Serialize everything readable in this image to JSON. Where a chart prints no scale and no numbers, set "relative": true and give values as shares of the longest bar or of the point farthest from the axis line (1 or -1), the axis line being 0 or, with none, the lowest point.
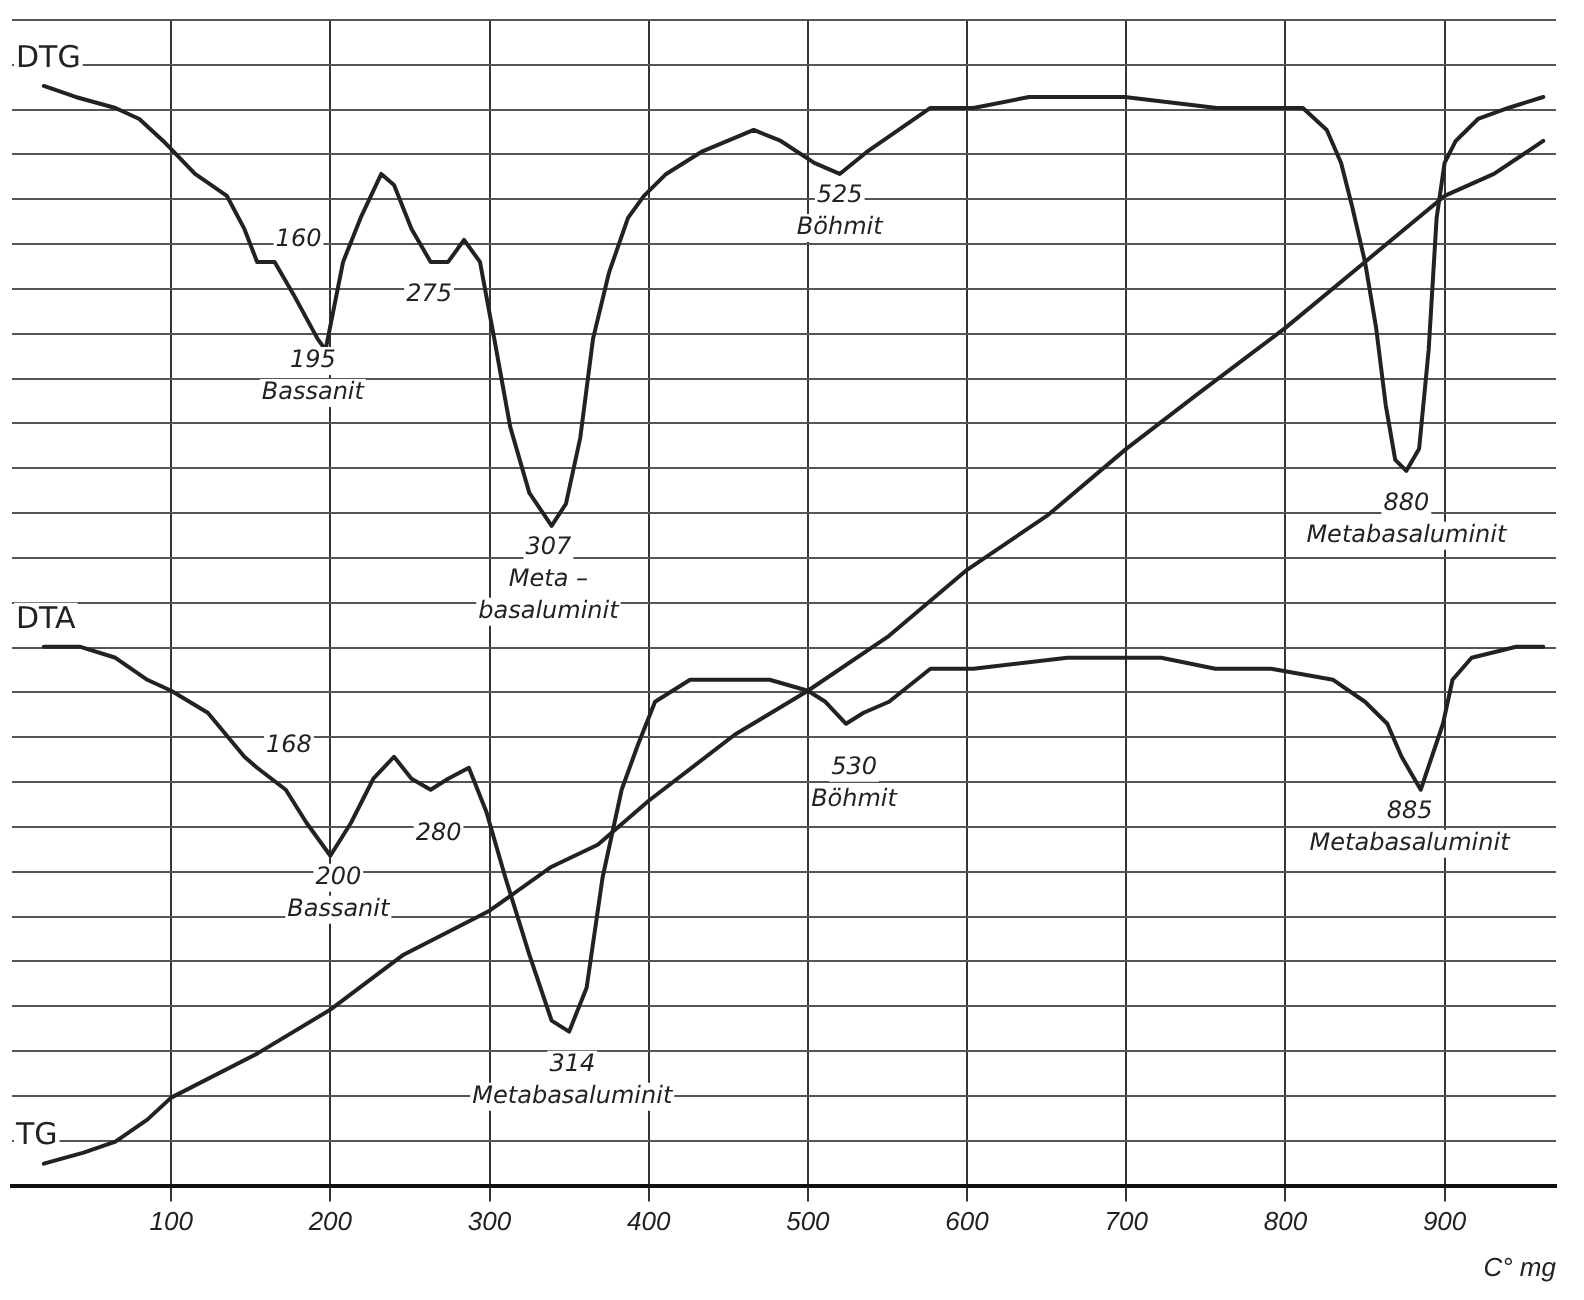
{
  "chart_data": {
    "type": "line",
    "relative": true,
    "xlabel": "C° mg",
    "xlim": [
      0,
      970
    ],
    "xticks": [
      100,
      200,
      300,
      400,
      500,
      600,
      700,
      800,
      900
    ],
    "tick_labels": "x",
    "grid": true,
    "legend": false,
    "marker": "none",
    "line_style": "solid",
    "series": [
      {
        "name": "DTG",
        "color": "#222222",
        "x": [
          20,
          40,
          65,
          80,
          95,
          115,
          135,
          146,
          154,
          165,
          177,
          192,
          197,
          208,
          219,
          232,
          240,
          251,
          263,
          274,
          284,
          294,
          303,
          313,
          325,
          339,
          348,
          357,
          365,
          375,
          387,
          397,
          411,
          433,
          466,
          483,
          504,
          520,
          537,
          557,
          577,
          604,
          639,
          699,
          757,
          791,
          811,
          826,
          835,
          842,
          850,
          857,
          863,
          869,
          876,
          884,
          890,
          895,
          900,
          907,
          921,
          940,
          962
        ],
        "values": [
          1.0,
          0.99,
          0.98,
          0.97,
          0.95,
          0.92,
          0.9,
          0.87,
          0.84,
          0.84,
          0.81,
          0.77,
          0.76,
          0.84,
          0.88,
          0.92,
          0.91,
          0.87,
          0.84,
          0.84,
          0.86,
          0.84,
          0.77,
          0.69,
          0.63,
          0.6,
          0.62,
          0.68,
          0.77,
          0.83,
          0.88,
          0.9,
          0.92,
          0.94,
          0.96,
          0.95,
          0.93,
          0.92,
          0.94,
          0.96,
          0.98,
          0.98,
          0.99,
          0.99,
          0.98,
          0.98,
          0.98,
          0.96,
          0.93,
          0.89,
          0.84,
          0.78,
          0.71,
          0.66,
          0.65,
          0.67,
          0.76,
          0.88,
          0.93,
          0.95,
          0.97,
          0.98,
          0.99
        ]
      },
      {
        "name": "DTA",
        "color": "#222222",
        "x": [
          20,
          43,
          65,
          85,
          100,
          123,
          146,
          154,
          172,
          185,
          200,
          213,
          227,
          240,
          251,
          263,
          274,
          287,
          298,
          310,
          325,
          339,
          350,
          361,
          371,
          383,
          393,
          404,
          426,
          454,
          476,
          500,
          511,
          524,
          535,
          551,
          577,
          604,
          663,
          722,
          756,
          791,
          830,
          850,
          864,
          873,
          885,
          892,
          899,
          905,
          917,
          945,
          962
        ],
        "values": [
          0.49,
          0.49,
          0.48,
          0.46,
          0.45,
          0.43,
          0.39,
          0.38,
          0.36,
          0.33,
          0.3,
          0.33,
          0.37,
          0.39,
          0.37,
          0.36,
          0.37,
          0.38,
          0.34,
          0.28,
          0.21,
          0.15,
          0.14,
          0.18,
          0.28,
          0.36,
          0.4,
          0.44,
          0.46,
          0.46,
          0.46,
          0.45,
          0.44,
          0.42,
          0.43,
          0.44,
          0.47,
          0.47,
          0.48,
          0.48,
          0.47,
          0.47,
          0.46,
          0.44,
          0.42,
          0.39,
          0.36,
          0.39,
          0.42,
          0.46,
          0.48,
          0.49,
          0.49
        ]
      },
      {
        "name": "TG",
        "color": "#222222",
        "x": [
          20,
          45,
          65,
          85,
          100,
          154,
          200,
          246,
          300,
          339,
          368,
          400,
          454,
          500,
          551,
          600,
          651,
          700,
          745,
          800,
          850,
          900,
          931,
          962
        ],
        "values": [
          0.02,
          0.03,
          0.04,
          0.06,
          0.08,
          0.12,
          0.16,
          0.21,
          0.25,
          0.29,
          0.31,
          0.35,
          0.41,
          0.45,
          0.5,
          0.56,
          0.61,
          0.67,
          0.72,
          0.78,
          0.84,
          0.9,
          0.92,
          0.95
        ]
      }
    ],
    "annotations": [
      {
        "text": "160",
        "x": 180,
        "y": 0.86
      },
      {
        "text": "195",
        "x": 189,
        "y": 0.75
      },
      "Bassanit",
      {
        "text": "275",
        "x": 262,
        "y": 0.81
      },
      {
        "text": "307",
        "x": 337,
        "y": 0.58
      },
      "Meta –",
      "basaluminit",
      {
        "text": "525",
        "x": 520,
        "y": 0.9
      },
      "Böhmit",
      {
        "text": "880",
        "x": 876,
        "y": 0.62
      },
      "Metabasaluminit",
      {
        "text": "168",
        "x": 174,
        "y": 0.4
      },
      {
        "text": "200",
        "x": 205,
        "y": 0.28
      },
      "Bassanit",
      {
        "text": "280",
        "x": 268,
        "y": 0.32
      },
      {
        "text": "314",
        "x": 352,
        "y": 0.11
      },
      "Metabasaluminit",
      {
        "text": "530",
        "x": 529,
        "y": 0.38
      },
      "Böhmit",
      {
        "text": "885",
        "x": 878,
        "y": 0.34
      },
      "Metabasaluminit"
    ]
  }
}
